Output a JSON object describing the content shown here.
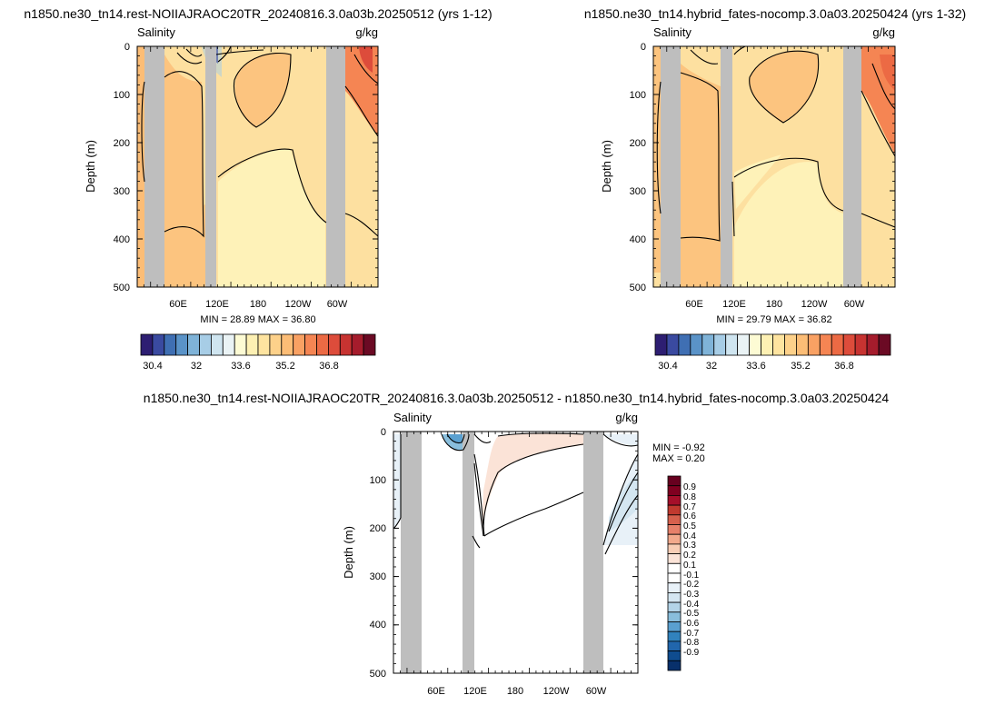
{
  "colors": {
    "land": "#bebebe",
    "salinity_palette": [
      "#2d1e72",
      "#3a4aa0",
      "#3f6fb3",
      "#5a93c8",
      "#7fb3d8",
      "#a7cde6",
      "#cfe5f0",
      "#eaf3f5",
      "#fdfbd4",
      "#fdf0b3",
      "#fee4a0",
      "#fdd18a",
      "#fcbd76",
      "#f9a163",
      "#f58553",
      "#ec6a44",
      "#dd4c3b",
      "#c73331",
      "#a51c2c",
      "#6b0a24"
    ],
    "diff_palette": [
      "#08306b",
      "#0f4c8f",
      "#2166ac",
      "#3182bd",
      "#5aa0d0",
      "#89bedc",
      "#b3d4e8",
      "#d4e6f1",
      "#e8f1f8",
      "#ffffff",
      "#ffffff",
      "#fbe3d7",
      "#f8cdb5",
      "#f2a98c",
      "#e6806a",
      "#d6604d",
      "#c0392f",
      "#a50f2a",
      "#7f0020",
      "#67001f"
    ]
  },
  "panels": [
    {
      "title": "n1850.ne30_tn14.rest-NOIIAJRAOC20TR_20240816.3.0a03b.20250512 (yrs 1-12)",
      "left_label": "Salinity",
      "right_label": "g/kg",
      "ylabel": "Depth (m)",
      "stats": "MIN =  28.89   MAX =  36.80"
    },
    {
      "title": "n1850.ne30_tn14.hybrid_fates-nocomp.3.0a03.20250424 (yrs 1-32)",
      "left_label": "Salinity",
      "right_label": "g/kg",
      "ylabel": "Depth (m)",
      "stats": "MIN =  29.79   MAX =  36.82"
    },
    {
      "title": "n1850.ne30_tn14.rest-NOIIAJRAOC20TR_20240816.3.0a03b.20250512 - n1850.ne30_tn14.hybrid_fates-nocomp.3.0a03.20250424",
      "left_label": "Salinity",
      "right_label": "g/kg",
      "ylabel": "Depth (m)",
      "stats_min": "MIN =  -0.92",
      "stats_max": "MAX =   0.20"
    }
  ],
  "chart_data": [
    {
      "type": "heatmap",
      "title": "n1850.ne30_tn14.rest-NOIIAJRAOC20TR_20240816.3.0a03b.20250512 (yrs 1-12)",
      "variable": "Salinity",
      "units": "g/kg",
      "ylabel": "Depth (m)",
      "y_ticks": [
        0,
        100,
        200,
        300,
        400,
        500
      ],
      "x_ticks": [
        "60E",
        "120E",
        "180",
        "120W",
        "60W"
      ],
      "ylim": [
        500,
        0
      ],
      "min": 28.89,
      "max": 36.8,
      "colorbar_ticks": [
        "30.4",
        "32",
        "33.6",
        "35.2",
        "36.8"
      ]
    },
    {
      "type": "heatmap",
      "title": "n1850.ne30_tn14.hybrid_fates-nocomp.3.0a03.20250424 (yrs 1-32)",
      "variable": "Salinity",
      "units": "g/kg",
      "ylabel": "Depth (m)",
      "y_ticks": [
        0,
        100,
        200,
        300,
        400,
        500
      ],
      "x_ticks": [
        "60E",
        "120E",
        "180",
        "120W",
        "60W"
      ],
      "ylim": [
        500,
        0
      ],
      "min": 29.79,
      "max": 36.82,
      "colorbar_ticks": [
        "30.4",
        "32",
        "33.6",
        "35.2",
        "36.8"
      ]
    },
    {
      "type": "heatmap",
      "title": "n1850.ne30_tn14.rest-NOIIAJRAOC20TR_20240816.3.0a03b.20250512 - n1850.ne30_tn14.hybrid_fates-nocomp.3.0a03.20250424",
      "variable": "Salinity",
      "units": "g/kg",
      "ylabel": "Depth (m)",
      "y_ticks": [
        0,
        100,
        200,
        300,
        400,
        500
      ],
      "x_ticks": [
        "60E",
        "120E",
        "180",
        "120W",
        "60W"
      ],
      "ylim": [
        500,
        0
      ],
      "min": -0.92,
      "max": 0.2,
      "colorbar_ticks": [
        "0.9",
        "0.8",
        "0.7",
        "0.6",
        "0.5",
        "0.4",
        "0.3",
        "0.2",
        "0.1",
        "-0.1",
        "-0.2",
        "-0.3",
        "-0.4",
        "-0.5",
        "-0.6",
        "-0.7",
        "-0.8",
        "-0.9"
      ]
    }
  ]
}
